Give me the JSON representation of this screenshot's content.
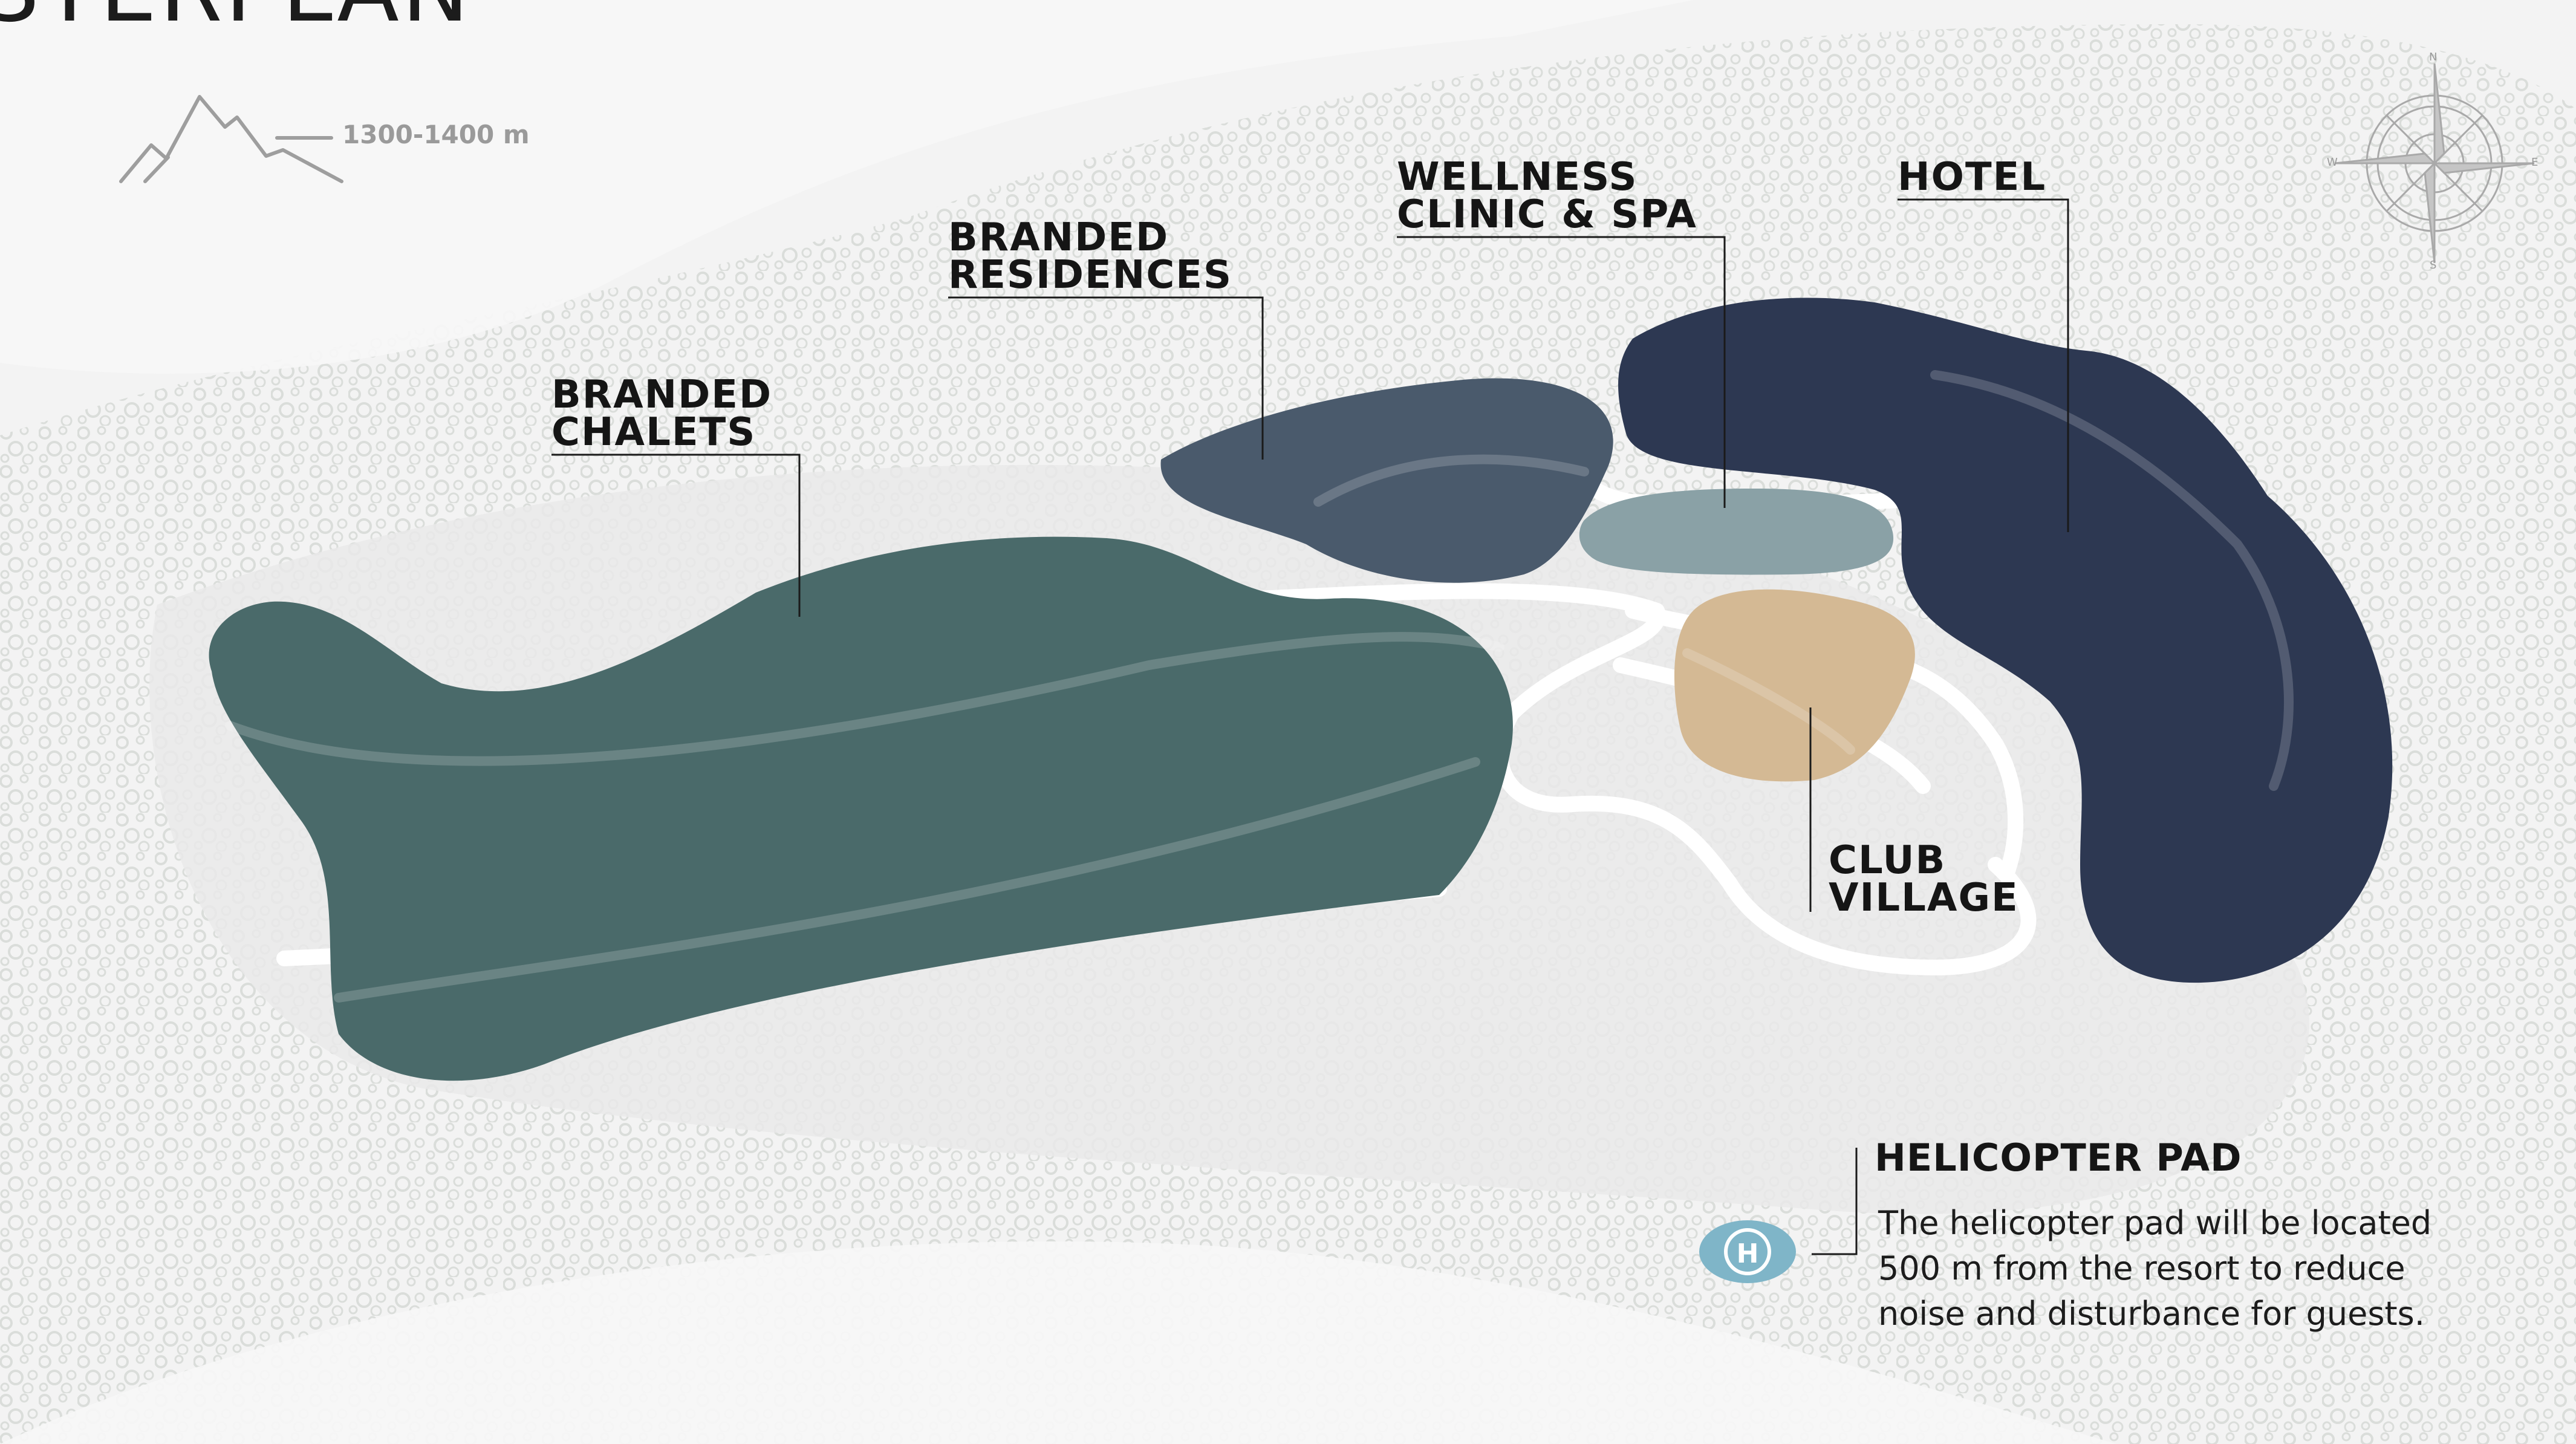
{
  "page": {
    "title": "STERPLAN"
  },
  "elevation": {
    "label": "1300-1400 m",
    "icon": "mountain-icon"
  },
  "compass": {
    "icon": "compass-rose-icon",
    "north": "N",
    "south": "S",
    "east": "E",
    "west": "W"
  },
  "zones": {
    "branded_chalets": {
      "line1": "BRANDED",
      "line2": "CHALETS",
      "color": "#4a6a6a"
    },
    "branded_residences": {
      "line1": "BRANDED",
      "line2": "RESIDENCES",
      "color": "#4a5a6c"
    },
    "wellness": {
      "line1": "WELLNESS",
      "line2": "CLINIC & SPA",
      "color": "#8aa1a6"
    },
    "hotel": {
      "line1": "HOTEL",
      "color": "#2d3852"
    },
    "club_village": {
      "line1": "CLUB",
      "line2": "VILLAGE",
      "color": "#d4b994"
    }
  },
  "helicopter": {
    "title": "HELICOPTER PAD",
    "icon_letter": "H",
    "icon": "helicopter-pad-icon",
    "description": "The helicopter pad will be located 500 m from the resort to reduce noise and disturbance for guests.",
    "color": "#7fb5c8"
  }
}
